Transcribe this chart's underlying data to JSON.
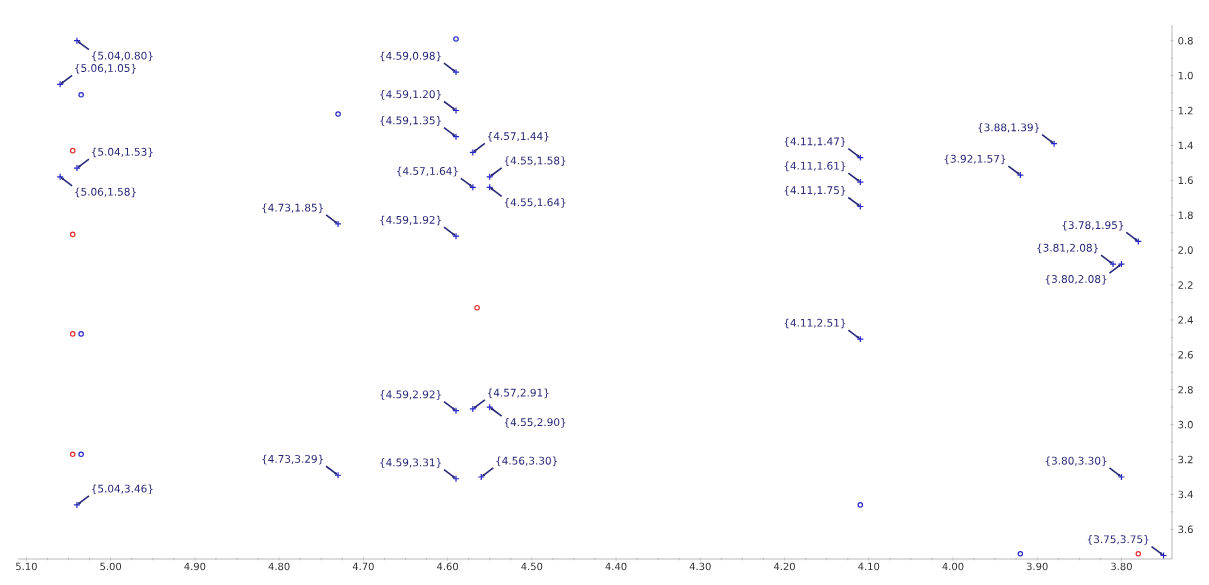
{
  "chart_data": {
    "type": "scatter",
    "xlim": [
      5.11,
      3.74
    ],
    "ylim": [
      3.77,
      0.71
    ],
    "xticks": [
      {
        "value": 5.1,
        "label": "5.10"
      },
      {
        "value": 5.0,
        "label": "5.00"
      },
      {
        "value": 4.9,
        "label": "4.90"
      },
      {
        "value": 4.8,
        "label": "4.80"
      },
      {
        "value": 4.7,
        "label": "4.70"
      },
      {
        "value": 4.6,
        "label": "4.60"
      },
      {
        "value": 4.5,
        "label": "4.50"
      },
      {
        "value": 4.4,
        "label": "4.40"
      },
      {
        "value": 4.3,
        "label": "4.30"
      },
      {
        "value": 4.2,
        "label": "4.20"
      },
      {
        "value": 4.1,
        "label": "4.10"
      },
      {
        "value": 4.0,
        "label": "4.00"
      },
      {
        "value": 3.9,
        "label": "3.90"
      },
      {
        "value": 3.8,
        "label": "3.80"
      }
    ],
    "yticks": [
      {
        "value": 0.8,
        "label": "0.8"
      },
      {
        "value": 1.0,
        "label": "1.0"
      },
      {
        "value": 1.2,
        "label": "1.2"
      },
      {
        "value": 1.4,
        "label": "1.4"
      },
      {
        "value": 1.6,
        "label": "1.6"
      },
      {
        "value": 1.8,
        "label": "1.8"
      },
      {
        "value": 2.0,
        "label": "2.0"
      },
      {
        "value": 2.2,
        "label": "2.2"
      },
      {
        "value": 2.4,
        "label": "2.4"
      },
      {
        "value": 2.6,
        "label": "2.6"
      },
      {
        "value": 2.8,
        "label": "2.8"
      },
      {
        "value": 3.0,
        "label": "3.0"
      },
      {
        "value": 3.2,
        "label": "3.2"
      },
      {
        "value": 3.4,
        "label": "3.4"
      },
      {
        "value": 3.6,
        "label": "3.6"
      }
    ],
    "series": [
      {
        "color": "#2626c8",
        "marker": "cross",
        "x": [
          5.04,
          5.06,
          4.59,
          4.59,
          4.59,
          4.57,
          5.04,
          4.57,
          4.55,
          4.55,
          5.06,
          4.73,
          4.59,
          4.11,
          4.11,
          4.11,
          3.88,
          3.92,
          3.78,
          3.81,
          3.8,
          4.11,
          4.59,
          4.57,
          4.55,
          4.73,
          4.59,
          4.56,
          5.04,
          3.8,
          3.75
        ],
        "values": [
          0.8,
          1.05,
          0.98,
          1.2,
          1.35,
          1.44,
          1.53,
          1.64,
          1.64,
          1.58,
          1.58,
          1.85,
          1.92,
          1.47,
          1.61,
          1.75,
          1.39,
          1.57,
          1.95,
          2.08,
          2.08,
          2.51,
          2.92,
          2.91,
          2.9,
          3.29,
          3.31,
          3.3,
          3.46,
          3.3,
          3.75
        ]
      },
      {
        "color": "#2626c8",
        "marker": "circle",
        "x": [
          4.59,
          4.73,
          5.035,
          5.035,
          5.035,
          4.11,
          3.92
        ],
        "values": [
          0.79,
          1.22,
          1.11,
          2.48,
          3.17,
          3.46,
          3.74
        ]
      },
      {
        "color": "#e03030",
        "marker": "circle",
        "x": [
          5.045,
          4.565,
          5.045,
          5.045,
          5.045,
          3.78
        ],
        "values": [
          1.43,
          2.33,
          1.91,
          2.48,
          3.17,
          3.74
        ]
      }
    ],
    "annotations": [
      {
        "text": "{5.04,0.80}",
        "x": 5.04,
        "y": 0.8
      },
      {
        "text": "{5.06,1.05}",
        "x": 5.06,
        "y": 1.05
      },
      {
        "text": "{4.59,0.98}",
        "x": 4.59,
        "y": 0.98
      },
      {
        "text": "{4.59,1.20}",
        "x": 4.59,
        "y": 1.2
      },
      {
        "text": "{4.59,1.35}",
        "x": 4.59,
        "y": 1.35
      },
      {
        "text": "{4.57,1.44}",
        "x": 4.57,
        "y": 1.44
      },
      {
        "text": "{5.04,1.53}",
        "x": 5.04,
        "y": 1.53
      },
      {
        "text": "{4.57,1.64}",
        "x": 4.57,
        "y": 1.64
      },
      {
        "text": "{4.55,1.64}",
        "x": 4.55,
        "y": 1.64
      },
      {
        "text": "{4.55,1.58}",
        "x": 4.55,
        "y": 1.58
      },
      {
        "text": "{5.06,1.58}",
        "x": 5.06,
        "y": 1.58
      },
      {
        "text": "{4.73,1.85}",
        "x": 4.73,
        "y": 1.85
      },
      {
        "text": "{4.59,1.92}",
        "x": 4.59,
        "y": 1.92
      },
      {
        "text": "{4.11,1.47}",
        "x": 4.11,
        "y": 1.47
      },
      {
        "text": "{4.11,1.61}",
        "x": 4.11,
        "y": 1.61
      },
      {
        "text": "{4.11,1.75}",
        "x": 4.11,
        "y": 1.75
      },
      {
        "text": "{3.88,1.39}",
        "x": 3.88,
        "y": 1.39
      },
      {
        "text": "{3.92,1.57}",
        "x": 3.92,
        "y": 1.57
      },
      {
        "text": "{3.78,1.95}",
        "x": 3.78,
        "y": 1.95
      },
      {
        "text": "{3.81,2.08}",
        "x": 3.81,
        "y": 2.08
      },
      {
        "text": "{3.80,2.08}",
        "x": 3.8,
        "y": 2.08
      },
      {
        "text": "{4.11,2.51}",
        "x": 4.11,
        "y": 2.51
      },
      {
        "text": "{4.59,2.92}",
        "x": 4.59,
        "y": 2.92
      },
      {
        "text": "{4.57,2.91}",
        "x": 4.57,
        "y": 2.91
      },
      {
        "text": "{4.55,2.90}",
        "x": 4.55,
        "y": 2.9
      },
      {
        "text": "{4.73,3.29}",
        "x": 4.73,
        "y": 3.29
      },
      {
        "text": "{4.59,3.31}",
        "x": 4.59,
        "y": 3.31
      },
      {
        "text": "{4.56,3.30}",
        "x": 4.56,
        "y": 3.3
      },
      {
        "text": "{5.04,3.46}",
        "x": 5.04,
        "y": 3.46
      },
      {
        "text": "{3.80,3.30}",
        "x": 3.8,
        "y": 3.3
      },
      {
        "text": "{3.75,3.75}",
        "x": 3.75,
        "y": 3.75
      }
    ]
  }
}
